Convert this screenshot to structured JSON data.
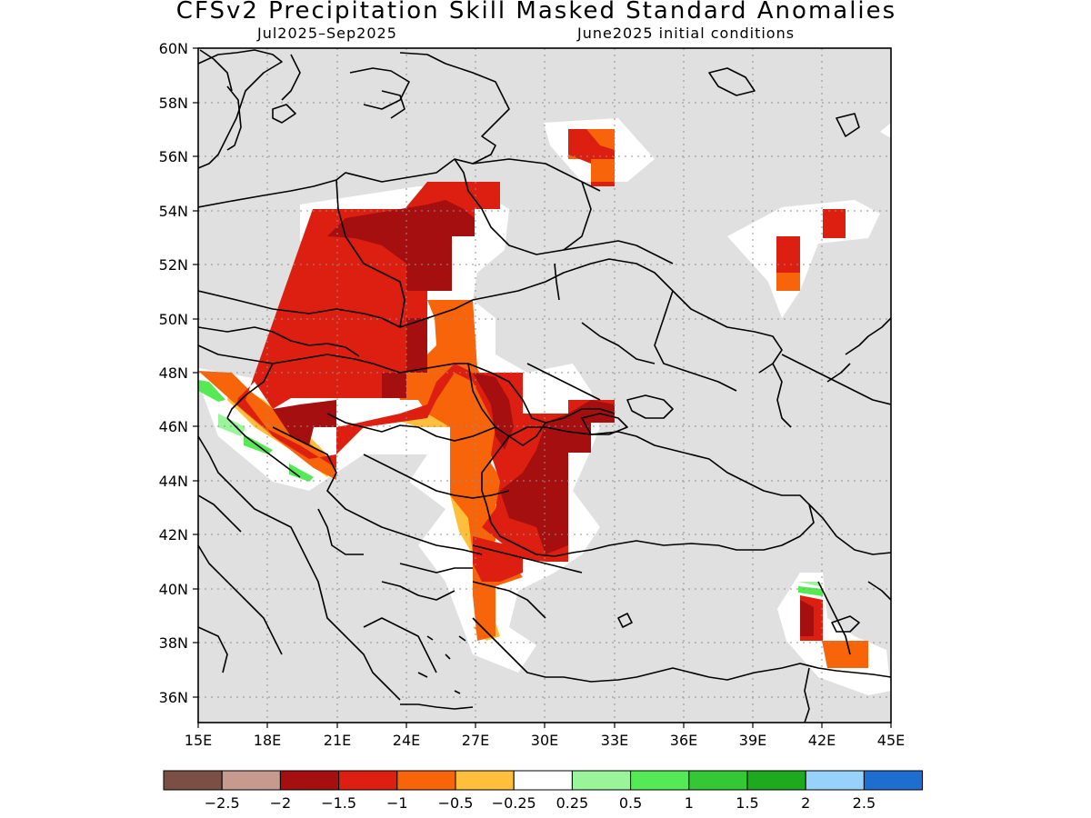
{
  "title": "CFSv2 Precipitation Skill Masked Standard Anomalies",
  "subtitle_left": "Jul2025–Sep2025",
  "subtitle_right": "June2025 initial conditions",
  "lat_labels": [
    "60N",
    "58N",
    "56N",
    "54N",
    "52N",
    "50N",
    "48N",
    "46N",
    "44N",
    "42N",
    "40N",
    "38N",
    "36N"
  ],
  "lon_labels": [
    "15E",
    "18E",
    "21E",
    "24E",
    "27E",
    "30E",
    "33E",
    "36E",
    "39E",
    "42E",
    "45E"
  ],
  "colorbar": {
    "colors": [
      "#7a4f45",
      "#c79a90",
      "#a50f0f",
      "#dc1f10",
      "#f7640a",
      "#ffbe3c",
      "#ffffff",
      "#9af59a",
      "#55ea55",
      "#35c835",
      "#1eaa1e",
      "#96d2fa",
      "#1e6ed2"
    ],
    "labels": [
      "−2.5",
      "−2",
      "−1.5",
      "−1",
      "−0.5",
      "−0.25",
      "0.25",
      "0.5",
      "1",
      "1.5",
      "2",
      "2.5"
    ]
  },
  "colors": {
    "land_background": "#e0e0e0",
    "neutral": "#ffffff",
    "strong_dry": "#a50f0f",
    "dry": "#dc1f10",
    "moderate_dry": "#f7640a",
    "weak_dry": "#ffbe3c",
    "wet": "#55ea55"
  }
}
